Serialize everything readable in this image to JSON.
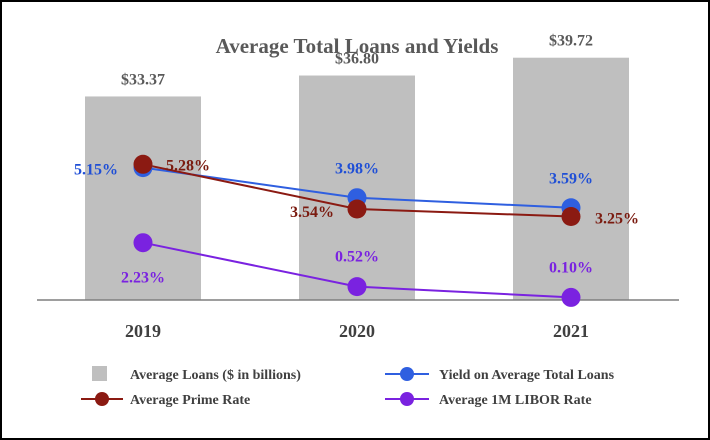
{
  "chart_data": {
    "type": "bar+line",
    "title": "Average Total Loans and Yields",
    "categories": [
      "2019",
      "2020",
      "2021"
    ],
    "bars": {
      "name": "Average Loans ($ in billions)",
      "values": [
        33.37,
        36.8,
        39.72
      ],
      "labels": [
        "$33.37",
        "$36.80",
        "$39.72"
      ],
      "color": "#bfbfbf"
    },
    "lines": [
      {
        "name": "Yield on Average Total Loans",
        "values": [
          5.15,
          3.98,
          3.59
        ],
        "labels": [
          "5.15%",
          "3.98%",
          "3.59%"
        ],
        "color": "#2f5fe0",
        "label_color": "#1f4fd6"
      },
      {
        "name": "Average Prime Rate",
        "values": [
          5.28,
          3.54,
          3.25
        ],
        "labels": [
          "5.28%",
          "3.54%",
          "3.25%"
        ],
        "color": "#8b1a12",
        "label_color": "#7a1a0f"
      },
      {
        "name": "Average 1M LIBOR Rate",
        "values": [
          2.23,
          0.52,
          0.1
        ],
        "labels": [
          "2.23%",
          "0.52%",
          "0.10%"
        ],
        "color": "#7a22e0",
        "label_color": "#7a22e0"
      }
    ],
    "grid": false,
    "legend_position": "bottom"
  }
}
